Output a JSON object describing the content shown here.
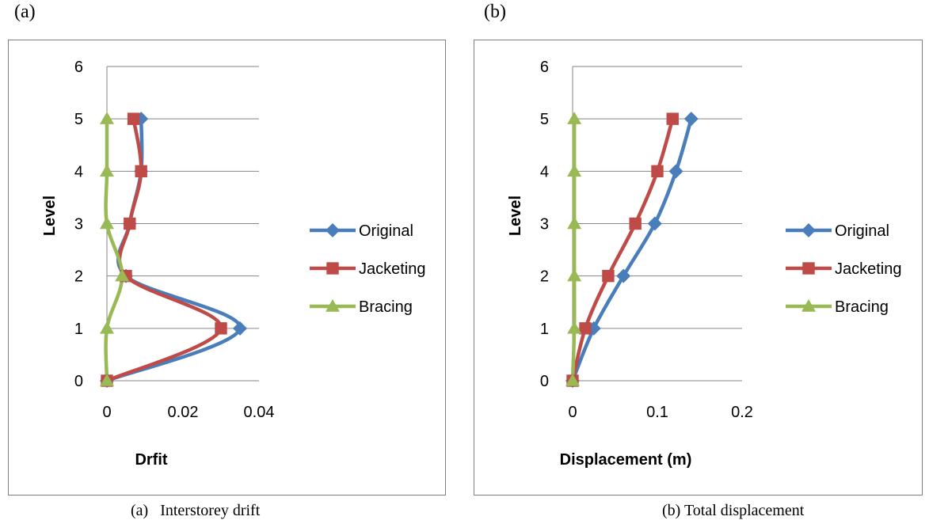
{
  "figure": {
    "panel_a_tag": "(a)",
    "panel_b_tag": "(b)",
    "caption_a": "(a)   Interstorey drift",
    "caption_b": "(b) Total displacement"
  },
  "colors": {
    "Original": "#4a7ebb",
    "Jacketing": "#be4b48",
    "Bracing": "#98b954",
    "grid": "#868686",
    "frame": "#7f7f7f"
  },
  "chart_data": [
    {
      "type": "line",
      "title": "",
      "xlabel": "Drfit",
      "ylabel": "Level",
      "xlim": [
        0,
        0.04
      ],
      "ylim": [
        0,
        6
      ],
      "x_ticks": [
        "0",
        "0.02",
        "0.04"
      ],
      "y_ticks": [
        "0",
        "1",
        "2",
        "3",
        "4",
        "5",
        "6"
      ],
      "grid": "horizontal",
      "legend": "right",
      "series": [
        {
          "name": "Original",
          "marker": "diamond",
          "points": [
            [
              0,
              0
            ],
            [
              0.035,
              1
            ],
            [
              0.005,
              2
            ],
            [
              0.006,
              3
            ],
            [
              0.009,
              4
            ],
            [
              0.009,
              5
            ]
          ]
        },
        {
          "name": "Jacketing",
          "marker": "square",
          "points": [
            [
              0,
              0
            ],
            [
              0.03,
              1
            ],
            [
              0.005,
              2
            ],
            [
              0.006,
              3
            ],
            [
              0.009,
              4
            ],
            [
              0.007,
              5
            ]
          ]
        },
        {
          "name": "Bracing",
          "marker": "triangle",
          "points": [
            [
              0,
              0
            ],
            [
              0,
              1
            ],
            [
              0.004,
              2
            ],
            [
              0,
              3
            ],
            [
              0,
              4
            ],
            [
              0,
              5
            ]
          ]
        }
      ]
    },
    {
      "type": "line",
      "title": "",
      "xlabel": "Displacement (m)",
      "ylabel": "Level",
      "xlim": [
        0,
        0.2
      ],
      "ylim": [
        0,
        6
      ],
      "x_ticks": [
        "0",
        "0.1",
        "0.2"
      ],
      "y_ticks": [
        "0",
        "1",
        "2",
        "3",
        "4",
        "5",
        "6"
      ],
      "grid": "horizontal",
      "legend": "right",
      "series": [
        {
          "name": "Original",
          "marker": "diamond",
          "points": [
            [
              0,
              0
            ],
            [
              0.025,
              1
            ],
            [
              0.06,
              2
            ],
            [
              0.097,
              3
            ],
            [
              0.122,
              4
            ],
            [
              0.14,
              5
            ]
          ]
        },
        {
          "name": "Jacketing",
          "marker": "square",
          "points": [
            [
              0,
              0
            ],
            [
              0.015,
              1
            ],
            [
              0.042,
              2
            ],
            [
              0.074,
              3
            ],
            [
              0.1,
              4
            ],
            [
              0.118,
              5
            ]
          ]
        },
        {
          "name": "Bracing",
          "marker": "triangle",
          "points": [
            [
              0,
              0
            ],
            [
              0.002,
              1
            ],
            [
              0.002,
              2
            ],
            [
              0.002,
              3
            ],
            [
              0.002,
              4
            ],
            [
              0.002,
              5
            ]
          ]
        }
      ]
    }
  ]
}
